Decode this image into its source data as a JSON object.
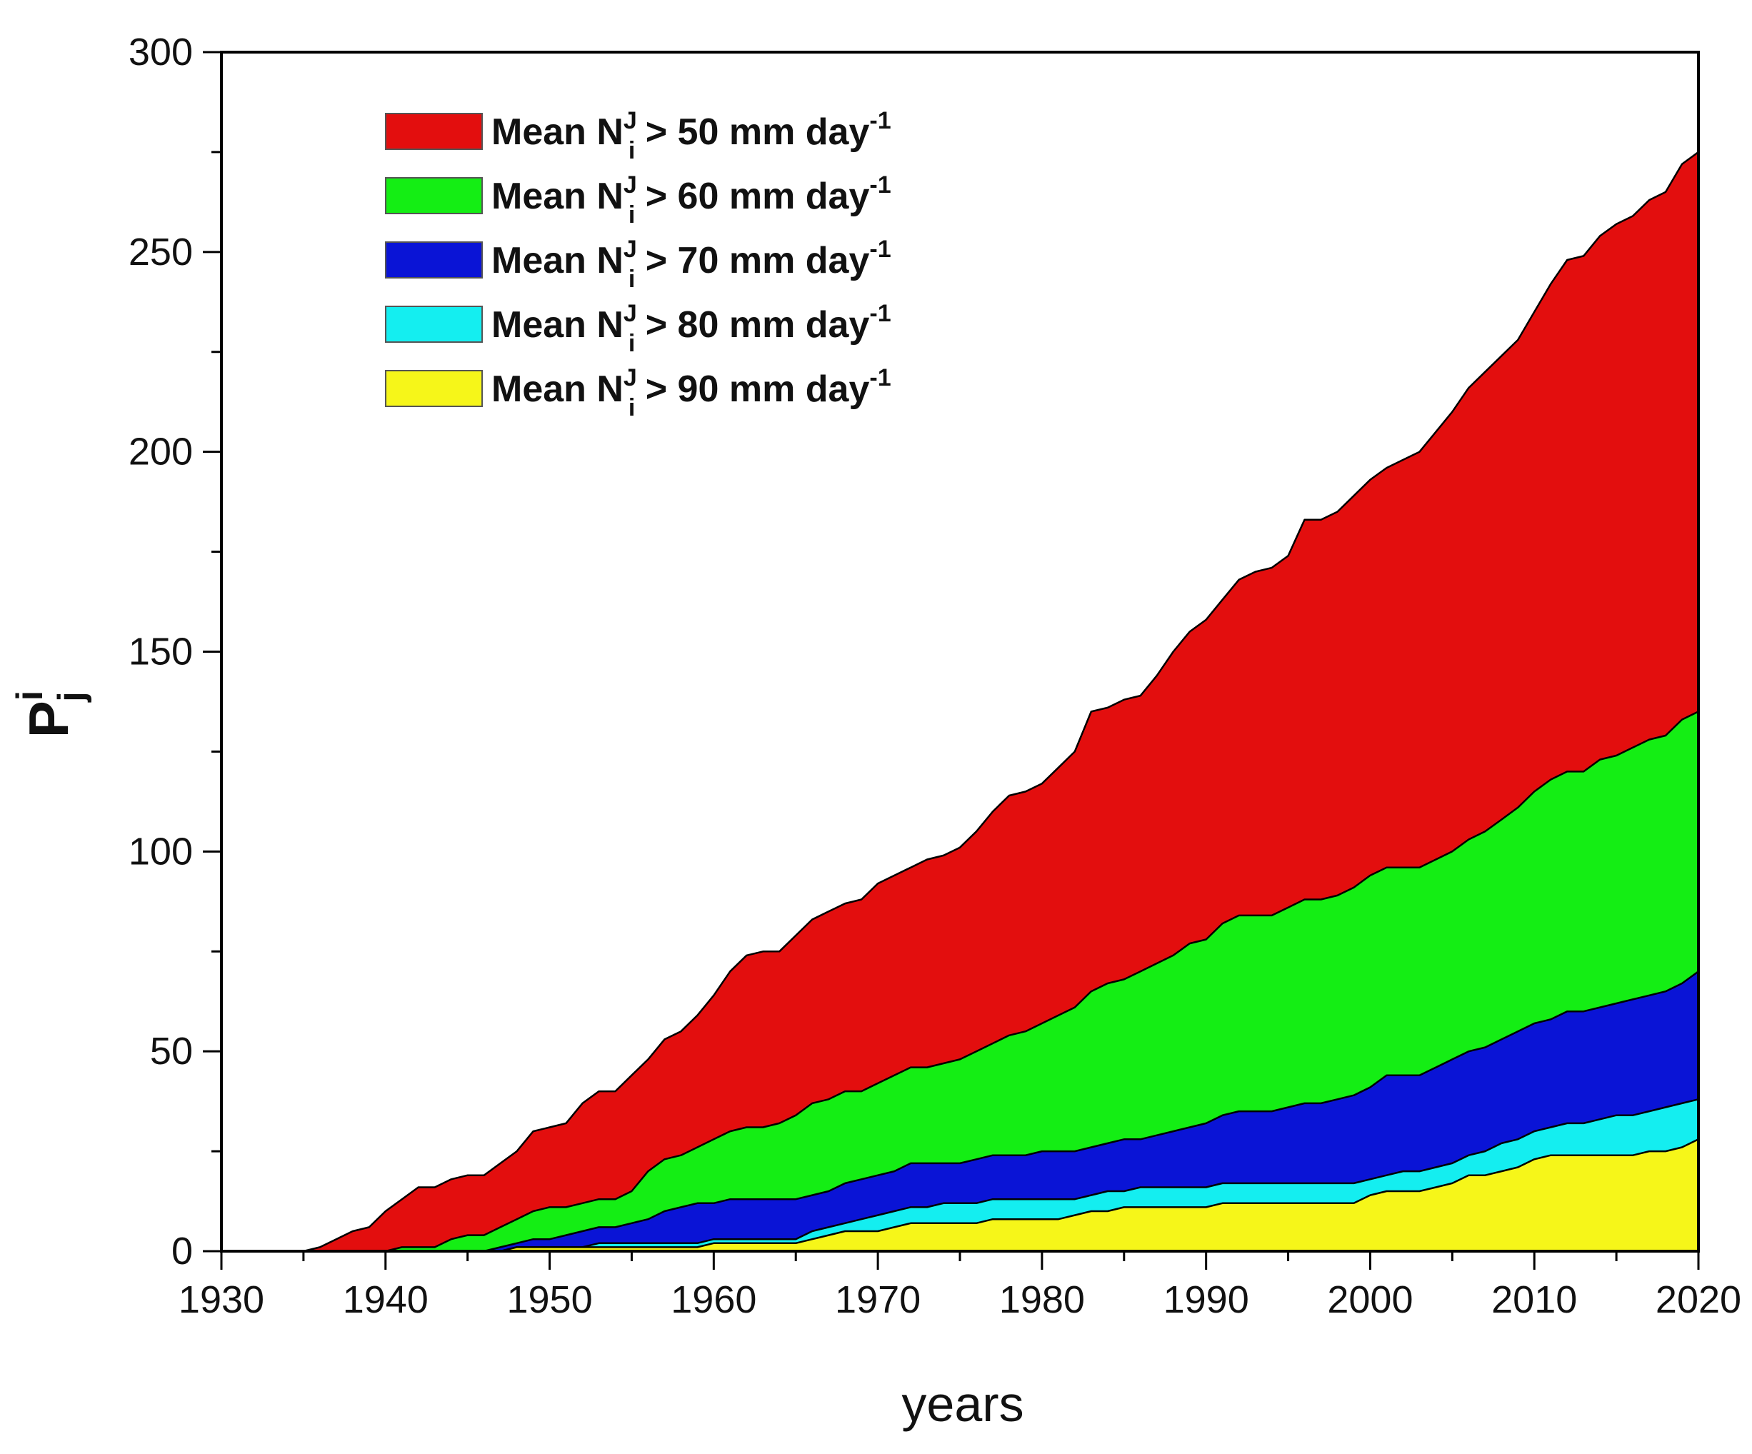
{
  "chart_data": {
    "type": "area",
    "stacked": false,
    "xlabel": "years",
    "ylabel": {
      "base": "P",
      "sup": "i",
      "sub": "j"
    },
    "xlim": [
      1930,
      2020
    ],
    "ylim": [
      0,
      300
    ],
    "x_ticks": [
      1930,
      1940,
      1950,
      1960,
      1970,
      1980,
      1990,
      2000,
      2010,
      2020
    ],
    "y_ticks": [
      0,
      50,
      100,
      150,
      200,
      250,
      300
    ],
    "grid": false,
    "legend_position": "top-left",
    "x": [
      1930,
      1935,
      1936,
      1937,
      1938,
      1939,
      1940,
      1941,
      1942,
      1943,
      1944,
      1945,
      1946,
      1947,
      1948,
      1949,
      1950,
      1951,
      1952,
      1953,
      1954,
      1955,
      1956,
      1957,
      1958,
      1959,
      1960,
      1961,
      1962,
      1963,
      1964,
      1965,
      1966,
      1967,
      1968,
      1969,
      1970,
      1971,
      1972,
      1973,
      1974,
      1975,
      1976,
      1977,
      1978,
      1979,
      1980,
      1981,
      1982,
      1983,
      1984,
      1985,
      1986,
      1987,
      1988,
      1989,
      1990,
      1991,
      1992,
      1993,
      1994,
      1995,
      1996,
      1997,
      1998,
      1999,
      2000,
      2001,
      2002,
      2003,
      2004,
      2005,
      2006,
      2007,
      2008,
      2009,
      2010,
      2011,
      2012,
      2013,
      2014,
      2015,
      2016,
      2017,
      2018,
      2019,
      2020
    ],
    "series": [
      {
        "name_parts": {
          "prefix": "Mean N",
          "sup": "J",
          "sub": "i",
          "mid": " > 50 mm day",
          "unit_sup": "-1"
        },
        "color": "#e30e0e",
        "values": [
          0,
          0,
          1,
          3,
          5,
          6,
          10,
          13,
          16,
          16,
          18,
          19,
          19,
          22,
          25,
          30,
          31,
          32,
          37,
          40,
          40,
          44,
          48,
          53,
          55,
          59,
          64,
          70,
          74,
          75,
          75,
          79,
          83,
          85,
          87,
          88,
          92,
          94,
          96,
          98,
          99,
          101,
          105,
          110,
          114,
          115,
          117,
          121,
          125,
          135,
          136,
          138,
          139,
          144,
          150,
          155,
          158,
          163,
          168,
          170,
          171,
          174,
          183,
          183,
          185,
          189,
          193,
          196,
          198,
          200,
          205,
          210,
          216,
          220,
          224,
          228,
          235,
          242,
          248,
          249,
          254,
          257,
          259,
          263,
          265,
          272,
          275
        ]
      },
      {
        "name_parts": {
          "prefix": "Mean N",
          "sup": "J",
          "sub": "i",
          "mid": " > 60 mm day",
          "unit_sup": "-1"
        },
        "color": "#14ee14",
        "values": [
          0,
          0,
          0,
          0,
          0,
          0,
          0,
          1,
          1,
          1,
          3,
          4,
          4,
          6,
          8,
          10,
          11,
          11,
          12,
          13,
          13,
          15,
          20,
          23,
          24,
          26,
          28,
          30,
          31,
          31,
          32,
          34,
          37,
          38,
          40,
          40,
          42,
          44,
          46,
          46,
          47,
          48,
          50,
          52,
          54,
          55,
          57,
          59,
          61,
          65,
          67,
          68,
          70,
          72,
          74,
          77,
          78,
          82,
          84,
          84,
          84,
          86,
          88,
          88,
          89,
          91,
          94,
          96,
          96,
          96,
          98,
          100,
          103,
          105,
          108,
          111,
          115,
          118,
          120,
          120,
          123,
          124,
          126,
          128,
          129,
          133,
          135
        ]
      },
      {
        "name_parts": {
          "prefix": "Mean N",
          "sup": "J",
          "sub": "i",
          "mid": " > 70 mm day",
          "unit_sup": "-1"
        },
        "color": "#0a14d6",
        "values": [
          0,
          0,
          0,
          0,
          0,
          0,
          0,
          0,
          0,
          0,
          0,
          0,
          0,
          1,
          2,
          3,
          3,
          4,
          5,
          6,
          6,
          7,
          8,
          10,
          11,
          12,
          12,
          13,
          13,
          13,
          13,
          13,
          14,
          15,
          17,
          18,
          19,
          20,
          22,
          22,
          22,
          22,
          23,
          24,
          24,
          24,
          25,
          25,
          25,
          26,
          27,
          28,
          28,
          29,
          30,
          31,
          32,
          34,
          35,
          35,
          35,
          36,
          37,
          37,
          38,
          39,
          41,
          44,
          44,
          44,
          46,
          48,
          50,
          51,
          53,
          55,
          57,
          58,
          60,
          60,
          61,
          62,
          63,
          64,
          65,
          67,
          70
        ]
      },
      {
        "name_parts": {
          "prefix": "Mean N",
          "sup": "J",
          "sub": "i",
          "mid": " > 80 mm day",
          "unit_sup": "-1"
        },
        "color": "#14eef0",
        "values": [
          0,
          0,
          0,
          0,
          0,
          0,
          0,
          0,
          0,
          0,
          0,
          0,
          0,
          0,
          1,
          1,
          1,
          1,
          1,
          2,
          2,
          2,
          2,
          2,
          2,
          2,
          3,
          3,
          3,
          3,
          3,
          3,
          5,
          6,
          7,
          8,
          9,
          10,
          11,
          11,
          12,
          12,
          12,
          13,
          13,
          13,
          13,
          13,
          13,
          14,
          15,
          15,
          16,
          16,
          16,
          16,
          16,
          17,
          17,
          17,
          17,
          17,
          17,
          17,
          17,
          17,
          18,
          19,
          20,
          20,
          21,
          22,
          24,
          25,
          27,
          28,
          30,
          31,
          32,
          32,
          33,
          34,
          34,
          35,
          36,
          37,
          38
        ]
      },
      {
        "name_parts": {
          "prefix": "Mean N",
          "sup": "J",
          "sub": "i",
          "mid": " > 90 mm day",
          "unit_sup": "-1"
        },
        "color": "#f6f619",
        "values": [
          0,
          0,
          0,
          0,
          0,
          0,
          0,
          0,
          0,
          0,
          0,
          0,
          0,
          0,
          1,
          1,
          1,
          1,
          1,
          1,
          1,
          1,
          1,
          1,
          1,
          1,
          2,
          2,
          2,
          2,
          2,
          2,
          3,
          4,
          5,
          5,
          5,
          6,
          7,
          7,
          7,
          7,
          7,
          8,
          8,
          8,
          8,
          8,
          9,
          10,
          10,
          11,
          11,
          11,
          11,
          11,
          11,
          12,
          12,
          12,
          12,
          12,
          12,
          12,
          12,
          12,
          14,
          15,
          15,
          15,
          16,
          17,
          19,
          19,
          20,
          21,
          23,
          24,
          24,
          24,
          24,
          24,
          24,
          25,
          25,
          26,
          28
        ]
      }
    ]
  }
}
